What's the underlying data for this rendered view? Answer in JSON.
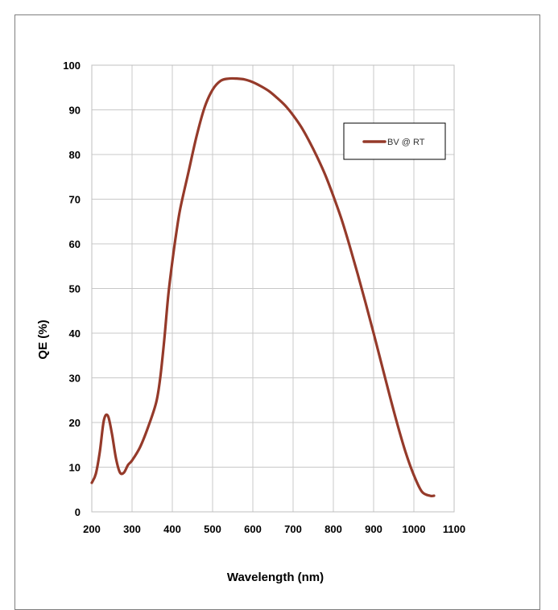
{
  "chart_data": {
    "type": "line",
    "title": "",
    "xlabel": "Wavelength (nm)",
    "ylabel": "QE (%)",
    "xlim": [
      200,
      1100
    ],
    "ylim": [
      0,
      100
    ],
    "xticks": [
      200,
      300,
      400,
      500,
      600,
      700,
      800,
      900,
      1000,
      1100
    ],
    "yticks": [
      0,
      10,
      20,
      30,
      40,
      50,
      60,
      70,
      80,
      90,
      100
    ],
    "grid": true,
    "legend_position": "top-right",
    "series": [
      {
        "name": "BV @ RT",
        "color": "#953a2a",
        "x": [
          200,
          210,
          220,
          230,
          240,
          250,
          260,
          270,
          280,
          290,
          300,
          320,
          340,
          360,
          370,
          380,
          390,
          400,
          410,
          420,
          440,
          460,
          480,
          500,
          520,
          540,
          560,
          580,
          600,
          620,
          640,
          660,
          680,
          700,
          720,
          740,
          760,
          780,
          800,
          820,
          840,
          860,
          880,
          900,
          920,
          940,
          960,
          980,
          1000,
          1020,
          1040,
          1050
        ],
        "y": [
          6.5,
          8.5,
          13.5,
          20.5,
          21.5,
          17.5,
          12,
          8.8,
          8.8,
          10.5,
          11.5,
          14.5,
          19,
          24.5,
          30,
          38.5,
          48.5,
          56,
          62.5,
          68,
          76,
          84,
          90.5,
          94.5,
          96.5,
          97,
          97,
          96.8,
          96.2,
          95.3,
          94.2,
          92.7,
          91,
          88.8,
          86.2,
          83,
          79.4,
          75.4,
          70.7,
          65.6,
          59.7,
          53.4,
          46.8,
          40,
          33,
          26,
          19.3,
          13.2,
          8.2,
          4.5,
          3.6,
          3.6
        ]
      }
    ]
  }
}
